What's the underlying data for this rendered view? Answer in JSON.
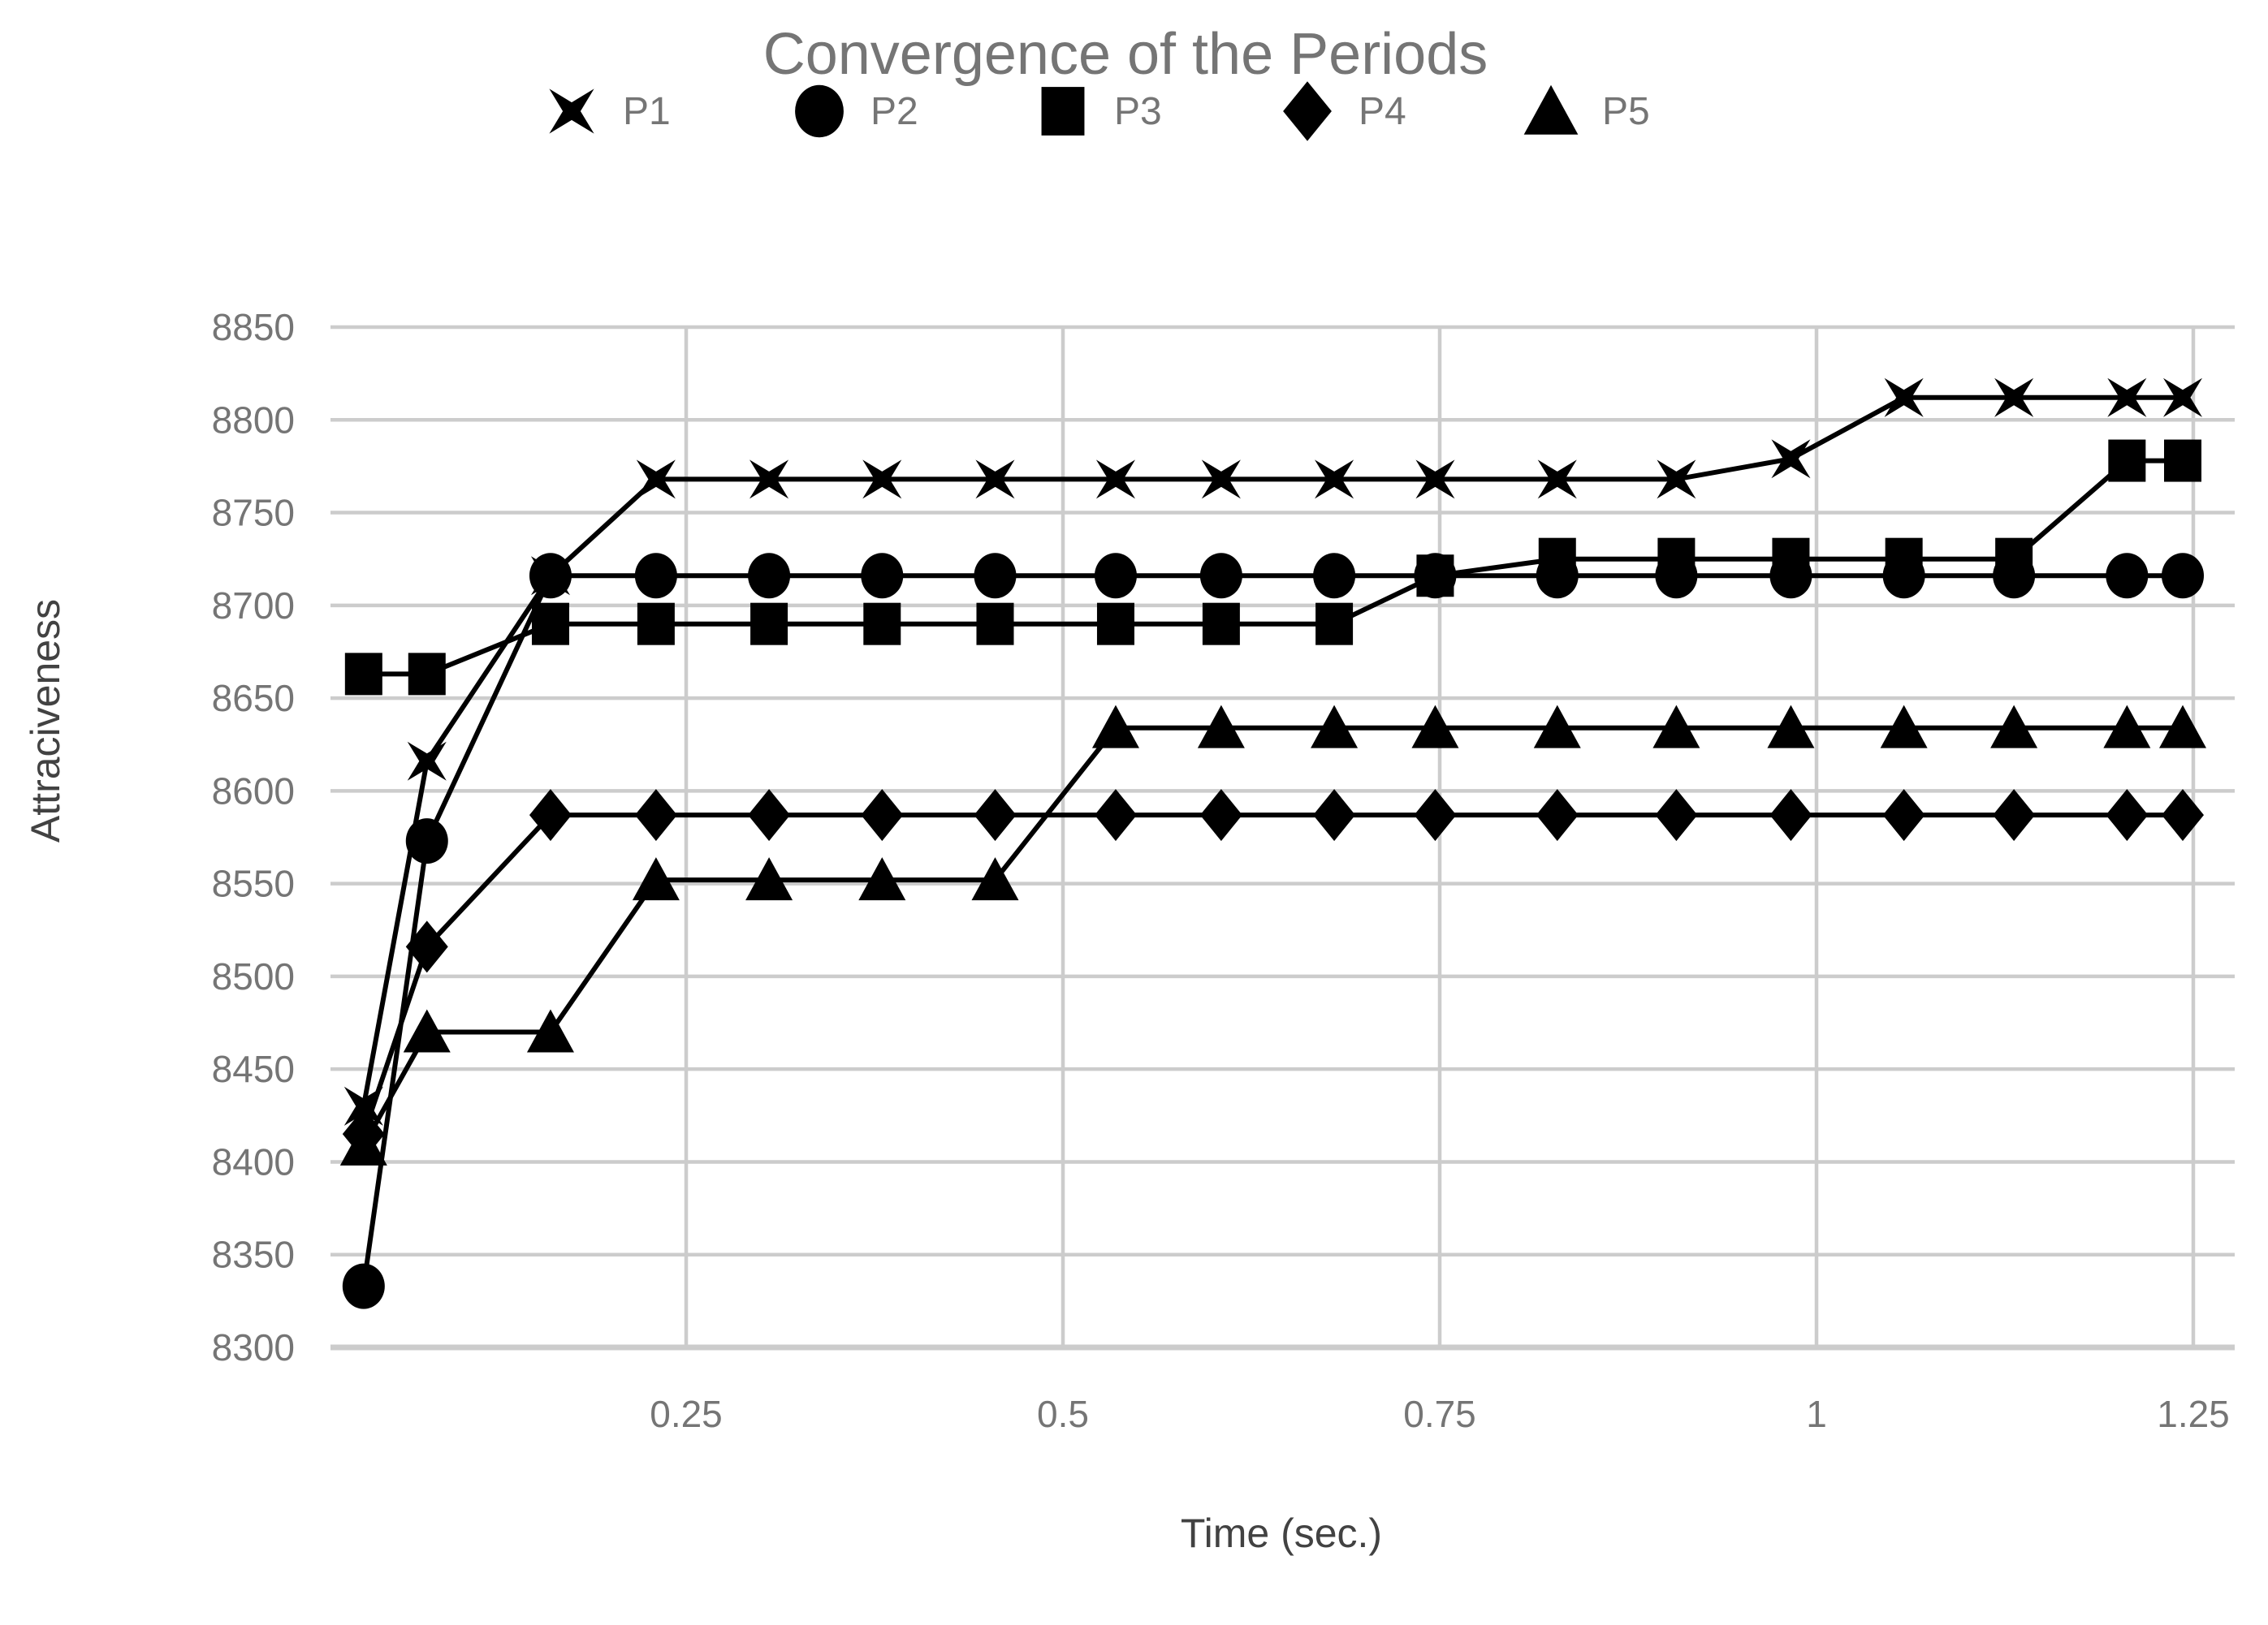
{
  "chart_data": {
    "type": "line",
    "title": "Convergence of the Periods",
    "xlabel": "Time (sec.)",
    "ylabel": "Attraciveness",
    "x": [
      0.036,
      0.078,
      0.16,
      0.23,
      0.305,
      0.38,
      0.455,
      0.535,
      0.605,
      0.68,
      0.747,
      0.828,
      0.907,
      0.983,
      1.058,
      1.131,
      1.206,
      1.243
    ],
    "series": [
      {
        "name": "P1",
        "marker": "x4-star",
        "values": [
          8430,
          8616,
          8716,
          8768,
          8768,
          8768,
          8768,
          8768,
          8768,
          8768,
          8768,
          8768,
          8768,
          8779,
          8812,
          8812,
          8812,
          8812
        ]
      },
      {
        "name": "P2",
        "marker": "circle",
        "values": [
          8333,
          8573,
          8716,
          8716,
          8716,
          8716,
          8716,
          8716,
          8716,
          8716,
          8716,
          8716,
          8716,
          8716,
          8716,
          8716,
          8716,
          8716
        ]
      },
      {
        "name": "P3",
        "marker": "square",
        "values": [
          8663,
          8663,
          8690,
          8690,
          8690,
          8690,
          8690,
          8690,
          8690,
          8690,
          8716,
          8725,
          8725,
          8725,
          8725,
          8725,
          8778,
          8778
        ]
      },
      {
        "name": "P4",
        "marker": "diamond",
        "values": [
          8415,
          8516,
          8587,
          8587,
          8587,
          8587,
          8587,
          8587,
          8587,
          8587,
          8587,
          8587,
          8587,
          8587,
          8587,
          8587,
          8587,
          8587
        ]
      },
      {
        "name": "P5",
        "marker": "triangle",
        "values": [
          8409,
          8470,
          8470,
          8552,
          8552,
          8552,
          8552,
          8634,
          8634,
          8634,
          8634,
          8634,
          8634,
          8634,
          8634,
          8634,
          8634,
          8634
        ]
      }
    ],
    "x_ticks": [
      0.25,
      0.5,
      0.75,
      1,
      1.25
    ],
    "x_tick_labels": [
      "0.25",
      "0.5",
      "0.75",
      "1",
      "1.25"
    ],
    "y_ticks": [
      8300,
      8350,
      8400,
      8450,
      8500,
      8550,
      8600,
      8650,
      8700,
      8750,
      8800,
      8850
    ],
    "y_tick_labels": [
      "8300",
      "8350",
      "8400",
      "8450",
      "8500",
      "8550",
      "8600",
      "8650",
      "8700",
      "8750",
      "8800",
      "8850"
    ],
    "xlim": [
      0.014,
      1.277
    ],
    "ylim": [
      8300,
      8850
    ],
    "grid": true,
    "legend_position": "top"
  },
  "colors": {
    "title": "#757575",
    "tick_label": "#757575",
    "axis_title": "#424242",
    "gridline": "#cccccc",
    "series": "#000000",
    "background": "#ffffff"
  }
}
